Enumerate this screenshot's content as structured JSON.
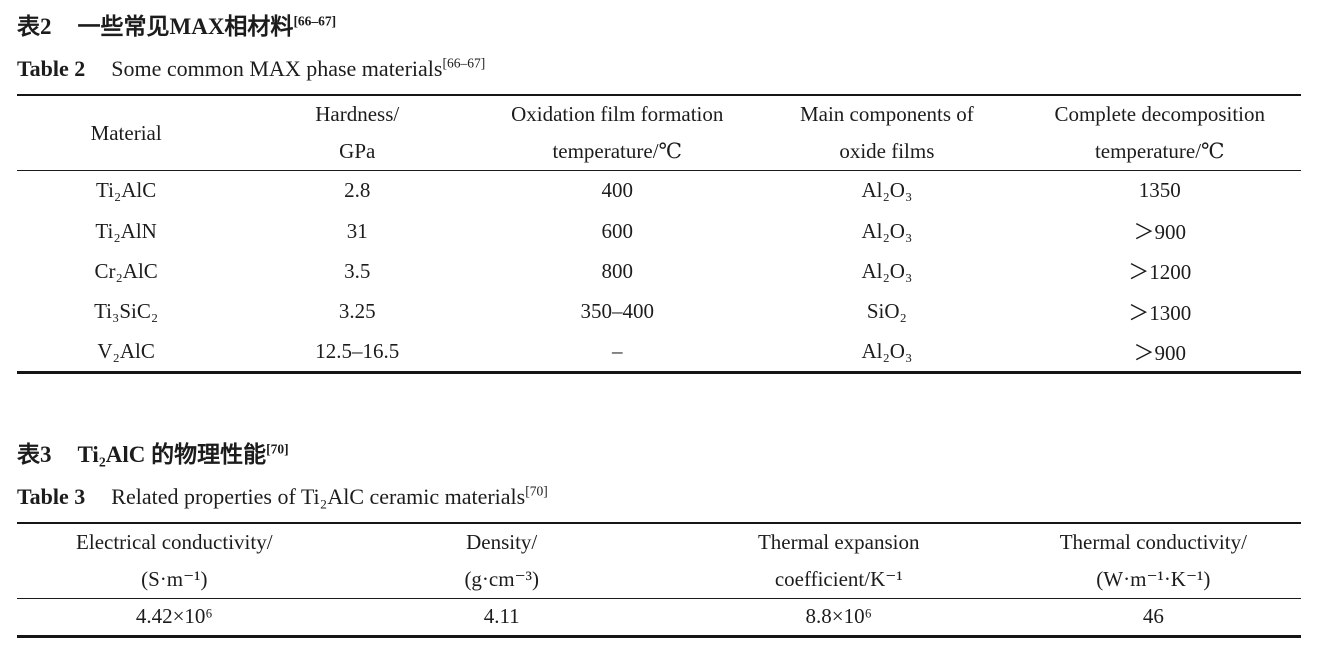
{
  "page": {
    "background": "#ffffff",
    "text_color": "#1c1c1c",
    "rule_color": "#161616"
  },
  "table2": {
    "caption_zh": {
      "label": "表2",
      "text": "一些常见MAX相材料",
      "ref": "[66–67]"
    },
    "caption_en": {
      "label": "Table 2",
      "text": "Some common MAX phase materials",
      "ref": "[66–67]"
    },
    "headers": [
      {
        "line1": "Material",
        "line2": ""
      },
      {
        "line1": "Hardness/",
        "line2": "GPa"
      },
      {
        "line1": "Oxidation film formation",
        "line2": "temperature/℃"
      },
      {
        "line1": "Main components of",
        "line2": "oxide films"
      },
      {
        "line1": "Complete decomposition",
        "line2": "temperature/℃"
      }
    ],
    "rows": [
      [
        "Ti₂AlC",
        "2.8",
        "400",
        "Al₂O₃",
        "1350"
      ],
      [
        "Ti₂AlN",
        "31",
        "600",
        "Al₂O₃",
        "＞900"
      ],
      [
        "Cr₂AlC",
        "3.5",
        "800",
        "Al₂O₃",
        "＞1200"
      ],
      [
        "Ti₃SiC₂",
        "3.25",
        "350–400",
        "SiO₂",
        "＞1300"
      ],
      [
        "V₂AlC",
        "12.5–16.5",
        "–",
        "Al₂O₃",
        "＞900"
      ]
    ]
  },
  "table3": {
    "caption_zh": {
      "label": "表3",
      "text": "Ti₂AlC 的物理性能",
      "ref": "[70]"
    },
    "caption_en": {
      "label": "Table 3",
      "text": "Related properties of Ti₂AlC ceramic materials",
      "ref": "[70]"
    },
    "headers": [
      {
        "line1": "Electrical conductivity/",
        "line2": "(S·m⁻¹)"
      },
      {
        "line1": "Density/",
        "line2": "(g·cm⁻³)"
      },
      {
        "line1": "Thermal expansion",
        "line2": "coefficient/K⁻¹"
      },
      {
        "line1": "Thermal conductivity/",
        "line2": "(W·m⁻¹·K⁻¹)"
      }
    ],
    "rows": [
      [
        "4.42×10⁶",
        "4.11",
        "8.8×10⁶",
        "46"
      ]
    ]
  }
}
